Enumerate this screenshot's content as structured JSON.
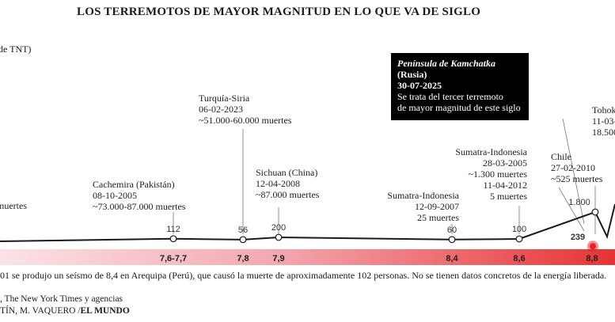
{
  "header": {
    "title": "LOS TERREMOTOS DE MAYOR MAGNITUD EN LO QUE VA DE SIGLO"
  },
  "unit_label": "de TNT)",
  "chart_data": {
    "type": "line",
    "colors": {
      "line": "#1a1a1a",
      "band_light": "#fbe3e6",
      "band_dark": "#e63333",
      "highlight": "#e3242b"
    },
    "points": [
      {
        "energy": 112,
        "magnitude": "7,6-7,7",
        "label": "112"
      },
      {
        "energy": 56,
        "magnitude": "7,8",
        "label": "56"
      },
      {
        "energy": 200,
        "magnitude": "7,9",
        "label": "200"
      },
      {
        "energy": 60,
        "magnitude": "8,4",
        "label": "60"
      },
      {
        "energy": 100,
        "magnitude": "8,6",
        "label": "100"
      },
      {
        "energy": 1800,
        "magnitude": "",
        "label": "1.800"
      },
      {
        "energy": 239,
        "magnitude": "8,8",
        "label": "239",
        "highlight": true
      }
    ],
    "magnitude_labels": [
      "7,6-7,7",
      "7,8",
      "7,9",
      "8,4",
      "8,6",
      "8,8"
    ]
  },
  "annotations": {
    "left_edge": "muertes",
    "cachemira": [
      "Cachemira (Pakistán)",
      "08-10-2005",
      "~73.000-87.000 muertes"
    ],
    "turquia": [
      "Turquía-Siria",
      "06-02-2023",
      "~51.000-60.000 muertes"
    ],
    "sichuan": [
      "Sichuan (China)",
      "12-04-2008",
      "~87.000 muertes"
    ],
    "sumatra2007": [
      "Sumatra-Indonesia",
      "12-09-2007",
      "25 muertes"
    ],
    "sumatra2005": [
      "Sumatra-Indonesia",
      "28-03-2005",
      "~1.300 muertes",
      "11-04-2012",
      "5 muertes"
    ],
    "chile": [
      "Chile",
      "27-02-2010",
      "~525 muertes"
    ],
    "tohoku": [
      "Tohok",
      "11-03-",
      "18.500"
    ]
  },
  "callout": {
    "title": "Península de Kamchatka",
    "country": "(Rusia)",
    "date": "30-07-2025",
    "desc1": "Se trata del tercer terremoto",
    "desc2": "de mayor magnitud de este siglo"
  },
  "footnote": "01 se produjo un seísmo de 8,4 en Arequipa (Perú), que causó la muerte de aproximadamente 102 personas. No se tienen datos concretos de la energía liberada.",
  "sources": ", The New York Times y agencias",
  "credits": {
    "authors": "TÍN, M. VAQUERO /",
    "brand": "EL MUNDO"
  }
}
